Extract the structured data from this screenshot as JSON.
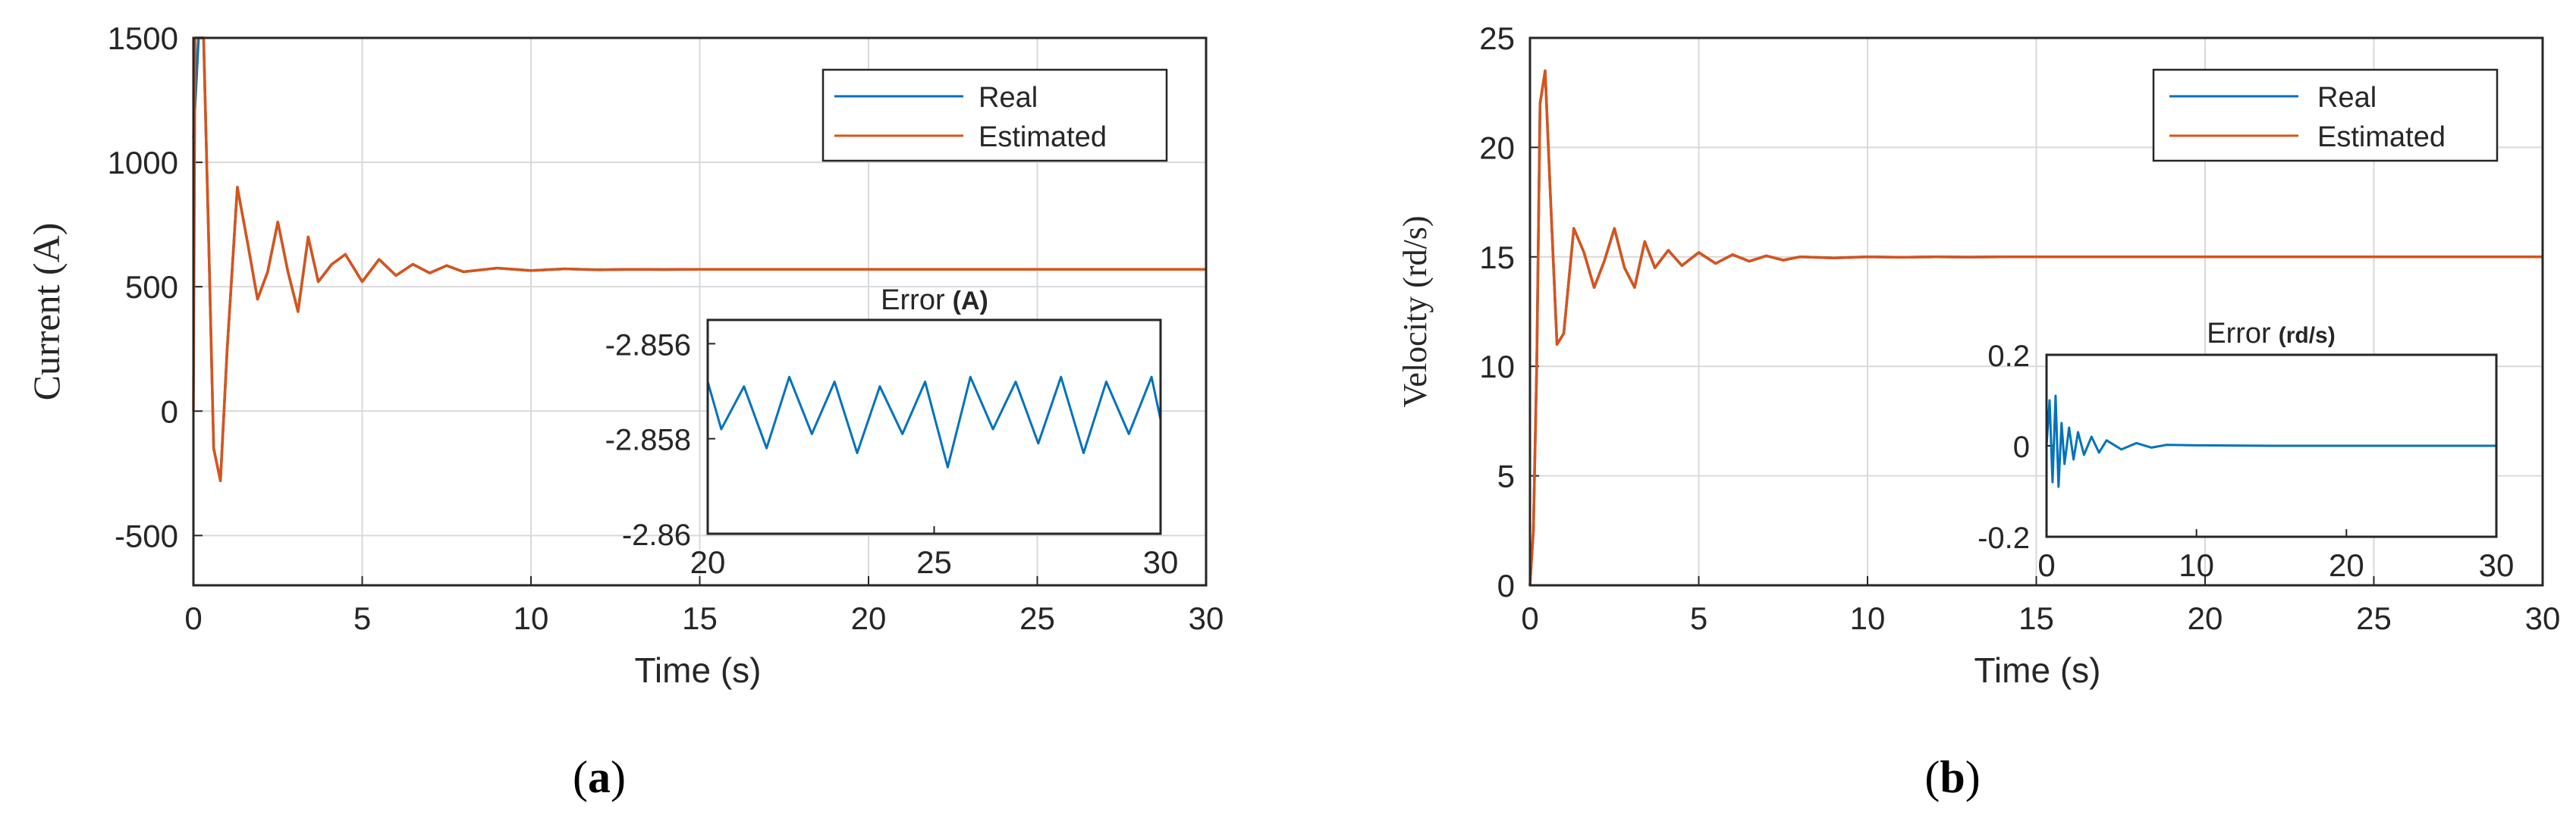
{
  "colors": {
    "real": "#0072BD",
    "estimated": "#D95319",
    "grid": "#d9d9d9",
    "axis": "#262626"
  },
  "panels": [
    {
      "caption": "(a)",
      "caption_letter": "a",
      "xlabel": "Time  (s)",
      "ylabel": "Current  (A)",
      "legend": [
        "Real",
        "Estimated"
      ],
      "legend_placement": "top-right",
      "grid": true,
      "xticks": [
        "0",
        "5",
        "10",
        "15",
        "20",
        "25",
        "30"
      ],
      "yticks": [
        "-500",
        "0",
        "500",
        "1000",
        "1500"
      ],
      "inset": {
        "title_main": "Error",
        "title_unit": "(A)",
        "xticks": [
          "20",
          "25",
          "30"
        ],
        "yticks": [
          "-2.856",
          "-2.858",
          "-2.86"
        ]
      }
    },
    {
      "caption": "(b)",
      "caption_letter": "b",
      "xlabel": "Time  (s)",
      "ylabel": "Velocity  (rd/s)",
      "legend": [
        "Real",
        "Estimated"
      ],
      "legend_placement": "top-right",
      "grid": true,
      "xticks": [
        "0",
        "5",
        "10",
        "15",
        "20",
        "25",
        "30"
      ],
      "yticks": [
        "0",
        "5",
        "10",
        "15",
        "20",
        "25"
      ],
      "inset": {
        "title_main": "Error",
        "title_unit": "(rd/s)",
        "xticks": [
          "0",
          "10",
          "20",
          "30"
        ],
        "yticks": [
          "0.2",
          "0",
          "-0.2"
        ]
      }
    }
  ],
  "chart_data": [
    {
      "type": "line",
      "xlim": [
        0,
        30
      ],
      "ylim": [
        -700,
        1500
      ],
      "grid": true,
      "legend_placement": "top-right",
      "series": [
        {
          "name": "Real",
          "x": [
            0,
            0.15,
            0.3,
            0.45,
            0.6,
            0.8,
            1.0,
            1.3,
            1.6,
            1.9,
            2.2,
            2.5,
            2.8,
            3.1,
            3.4,
            3.7,
            4.1,
            4.5,
            5.0,
            5.5,
            6.0,
            6.5,
            7.0,
            7.5,
            8,
            9,
            10,
            11,
            12,
            13,
            14,
            15,
            16.7
          ],
          "y": [
            1100,
            1500,
            1500,
            700,
            -150,
            -280,
            250,
            900,
            680,
            450,
            560,
            760,
            560,
            400,
            700,
            520,
            590,
            630,
            520,
            610,
            545,
            590,
            555,
            585,
            560,
            575,
            565,
            572,
            568,
            570,
            569,
            570,
            570
          ]
        },
        {
          "name": "Estimated",
          "x": [
            0,
            0.05,
            0.15,
            0.3,
            0.45,
            0.6,
            0.8,
            1.0,
            1.3,
            1.6,
            1.9,
            2.2,
            2.5,
            2.8,
            3.1,
            3.4,
            3.7,
            4.1,
            4.5,
            5.0,
            5.5,
            6.0,
            6.5,
            7.0,
            7.5,
            8,
            9,
            10,
            11,
            12,
            13,
            14,
            15,
            20,
            25,
            30
          ],
          "y": [
            0,
            1500,
            1500,
            1500,
            700,
            -150,
            -280,
            250,
            900,
            680,
            450,
            560,
            760,
            560,
            400,
            700,
            520,
            590,
            630,
            520,
            610,
            545,
            590,
            555,
            585,
            560,
            575,
            565,
            572,
            568,
            570,
            569,
            570,
            570,
            570,
            570
          ]
        }
      ],
      "inset": {
        "type": "line",
        "title": "Error (A)",
        "xlim": [
          20,
          30
        ],
        "ylim": [
          -2.86,
          -2.8555
        ],
        "series": [
          {
            "name": "Error",
            "x": [
              20,
              20.3,
              20.8,
              21.3,
              21.8,
              22.3,
              22.8,
              23.3,
              23.8,
              24.3,
              24.8,
              25.3,
              25.8,
              26.3,
              26.8,
              27.3,
              27.8,
              28.3,
              28.8,
              29.3,
              29.8,
              30
            ],
            "y": [
              -2.8568,
              -2.8578,
              -2.8569,
              -2.8582,
              -2.8567,
              -2.8579,
              -2.8568,
              -2.8583,
              -2.8569,
              -2.8579,
              -2.8568,
              -2.8586,
              -2.8567,
              -2.8578,
              -2.8568,
              -2.8581,
              -2.8567,
              -2.8583,
              -2.8568,
              -2.8579,
              -2.8567,
              -2.8576
            ]
          }
        ]
      }
    },
    {
      "type": "line",
      "xlim": [
        0,
        30
      ],
      "ylim": [
        0,
        25
      ],
      "grid": true,
      "legend_placement": "top-right",
      "series": [
        {
          "name": "Real",
          "x": [
            0,
            0.1,
            0.2,
            0.3,
            0.45,
            0.6,
            0.8,
            1.0,
            1.3,
            1.6,
            1.9,
            2.2,
            2.5,
            2.8,
            3.1,
            3.4,
            3.7,
            4.1,
            4.5,
            5.0,
            5.5,
            6.0,
            6.5,
            7.0,
            7.5,
            8,
            9,
            10,
            11,
            12,
            13,
            14,
            14.8
          ],
          "y": [
            0,
            2.5,
            10,
            22,
            23.5,
            18,
            11,
            11.5,
            16.3,
            15.2,
            13.6,
            14.8,
            16.3,
            14.5,
            13.6,
            15.7,
            14.5,
            15.3,
            14.6,
            15.2,
            14.7,
            15.1,
            14.8,
            15.05,
            14.85,
            15.0,
            14.95,
            15.0,
            14.98,
            15.0,
            14.99,
            15.0,
            15.0
          ]
        },
        {
          "name": "Estimated",
          "x": [
            0,
            0.1,
            0.2,
            0.3,
            0.45,
            0.6,
            0.8,
            1.0,
            1.3,
            1.6,
            1.9,
            2.2,
            2.5,
            2.8,
            3.1,
            3.4,
            3.7,
            4.1,
            4.5,
            5.0,
            5.5,
            6.0,
            6.5,
            7.0,
            7.5,
            8,
            9,
            10,
            11,
            12,
            13,
            14,
            15,
            20,
            25,
            30
          ],
          "y": [
            0,
            2.5,
            10,
            22,
            23.5,
            18,
            11,
            11.5,
            16.3,
            15.2,
            13.6,
            14.8,
            16.3,
            14.5,
            13.6,
            15.7,
            14.5,
            15.3,
            14.6,
            15.2,
            14.7,
            15.1,
            14.8,
            15.05,
            14.85,
            15.0,
            14.95,
            15.0,
            14.98,
            15.0,
            14.99,
            15.0,
            15.0,
            15.0,
            15.0,
            15.0
          ]
        }
      ],
      "inset": {
        "type": "line",
        "title": "Error (rd/s)",
        "xlim": [
          0,
          30
        ],
        "ylim": [
          -0.2,
          0.2
        ],
        "series": [
          {
            "name": "Error",
            "x": [
              0,
              0.2,
              0.4,
              0.6,
              0.8,
              1.0,
              1.2,
              1.5,
              1.8,
              2.1,
              2.5,
              3.0,
              3.5,
              4.0,
              5.0,
              6.0,
              7.0,
              8.0,
              10,
              15,
              20,
              25,
              30
            ],
            "y": [
              0,
              0.1,
              -0.08,
              0.11,
              -0.09,
              0.05,
              -0.04,
              0.04,
              -0.03,
              0.03,
              -0.02,
              0.02,
              -0.015,
              0.012,
              -0.008,
              0.006,
              -0.004,
              0.002,
              0.001,
              0,
              0,
              0,
              0
            ]
          }
        ]
      }
    }
  ]
}
